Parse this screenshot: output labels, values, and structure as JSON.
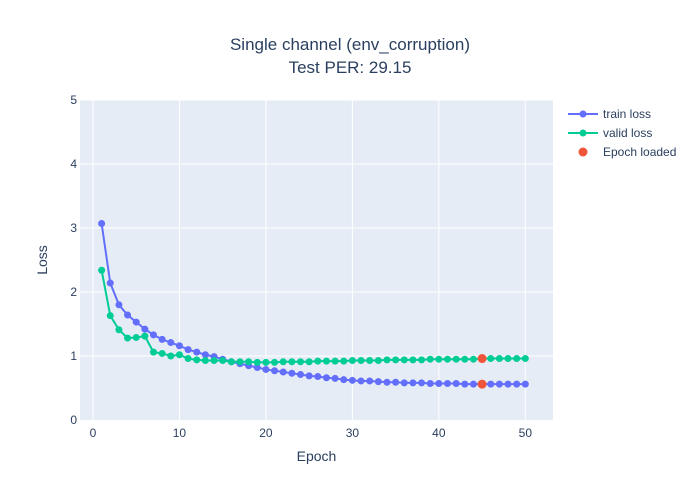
{
  "chart_data": {
    "type": "line",
    "title_line1": "Single channel (env_corruption)",
    "title_line2": "Test PER: 29.15",
    "xlabel": "Epoch",
    "ylabel": "Loss",
    "xlim": [
      -1.5,
      53.2
    ],
    "ylim": [
      0,
      5
    ],
    "x_ticks": [
      0,
      10,
      20,
      30,
      40,
      50
    ],
    "y_ticks": [
      0,
      1,
      2,
      3,
      4,
      5
    ],
    "grid": true,
    "legend_position": "top-right",
    "series": [
      {
        "name": "train loss",
        "color": "#636efa",
        "marker": "circle",
        "x": [
          1,
          2,
          3,
          4,
          5,
          6,
          7,
          8,
          9,
          10,
          11,
          12,
          13,
          14,
          15,
          16,
          17,
          18,
          19,
          20,
          21,
          22,
          23,
          24,
          25,
          26,
          27,
          28,
          29,
          30,
          31,
          32,
          33,
          34,
          35,
          36,
          37,
          38,
          39,
          40,
          41,
          42,
          43,
          44,
          45,
          46,
          47,
          48,
          49,
          50
        ],
        "values": [
          3.07,
          2.14,
          1.8,
          1.64,
          1.53,
          1.42,
          1.33,
          1.26,
          1.21,
          1.16,
          1.1,
          1.06,
          1.02,
          0.99,
          0.95,
          0.91,
          0.88,
          0.85,
          0.82,
          0.79,
          0.77,
          0.75,
          0.73,
          0.71,
          0.69,
          0.68,
          0.66,
          0.65,
          0.63,
          0.62,
          0.61,
          0.61,
          0.6,
          0.59,
          0.59,
          0.58,
          0.58,
          0.58,
          0.57,
          0.57,
          0.57,
          0.57,
          0.56,
          0.56,
          0.56,
          0.56,
          0.56,
          0.56,
          0.56,
          0.56
        ]
      },
      {
        "name": "valid loss",
        "color": "#00cc96",
        "marker": "circle",
        "x": [
          1,
          2,
          3,
          4,
          5,
          6,
          7,
          8,
          9,
          10,
          11,
          12,
          13,
          14,
          15,
          16,
          17,
          18,
          19,
          20,
          21,
          22,
          23,
          24,
          25,
          26,
          27,
          28,
          29,
          30,
          31,
          32,
          33,
          34,
          35,
          36,
          37,
          38,
          39,
          40,
          41,
          42,
          43,
          44,
          45,
          46,
          47,
          48,
          49,
          50
        ],
        "values": [
          2.34,
          1.63,
          1.41,
          1.28,
          1.29,
          1.31,
          1.06,
          1.04,
          1.0,
          1.02,
          0.96,
          0.94,
          0.93,
          0.93,
          0.93,
          0.91,
          0.91,
          0.91,
          0.9,
          0.9,
          0.9,
          0.91,
          0.91,
          0.91,
          0.91,
          0.92,
          0.92,
          0.92,
          0.92,
          0.93,
          0.93,
          0.93,
          0.93,
          0.94,
          0.94,
          0.94,
          0.94,
          0.94,
          0.95,
          0.95,
          0.95,
          0.95,
          0.95,
          0.95,
          0.96,
          0.96,
          0.96,
          0.96,
          0.96,
          0.96
        ]
      },
      {
        "name": "Epoch loaded",
        "color": "#ef553b",
        "marker": "circle",
        "mode": "markers",
        "x": [
          45,
          45
        ],
        "values": [
          0.56,
          0.96
        ]
      }
    ]
  }
}
